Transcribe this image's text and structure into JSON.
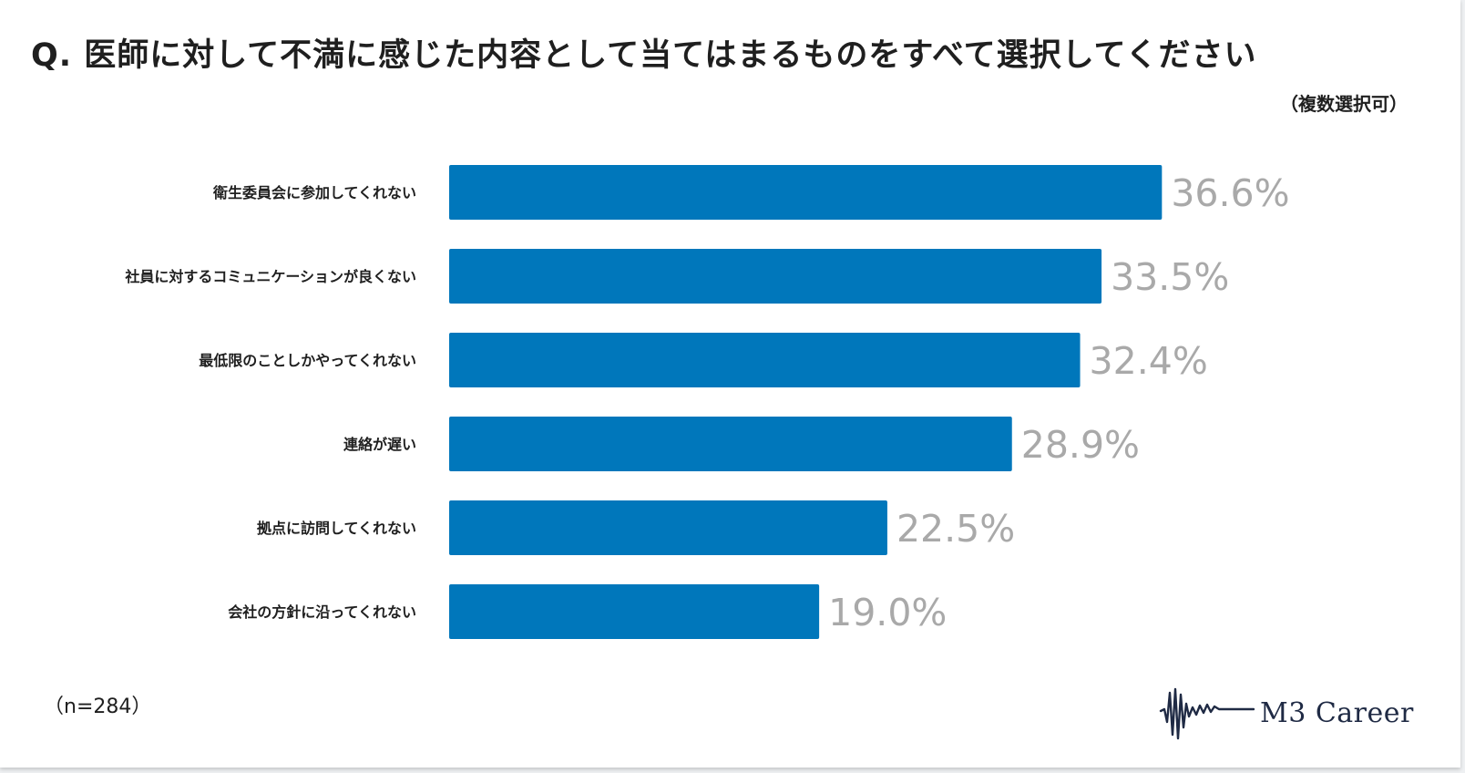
{
  "title": "Q. 医師に対して不満に感じた内容として当てはまるものをすべて選択してください",
  "subtitle": "（複数選択可）",
  "note": "（n=284）",
  "brand": {
    "name": "M3 Career",
    "logo_icon": "waveform-logo-icon",
    "color": "#1f2a44"
  },
  "colors": {
    "bar": "#0077bb",
    "value_label": "#a9a9a9",
    "text": "#1f1f1f"
  },
  "chart_data": {
    "type": "bar",
    "orientation": "horizontal",
    "categories": [
      "衛生委員会に参加してくれない",
      "社員に対するコミュニケーションが良くない",
      "最低限のことしかやってくれない",
      "連絡が遅い",
      "拠点に訪問してくれない",
      "会社の方針に沿ってくれない"
    ],
    "values": [
      36.6,
      33.5,
      32.4,
      28.9,
      22.5,
      19.0
    ],
    "value_labels": [
      "36.6%",
      "33.5%",
      "32.4%",
      "28.9%",
      "22.5%",
      "19.0%"
    ],
    "unit": "%",
    "xlim": [
      0,
      40
    ],
    "grid": false,
    "legend": false
  }
}
